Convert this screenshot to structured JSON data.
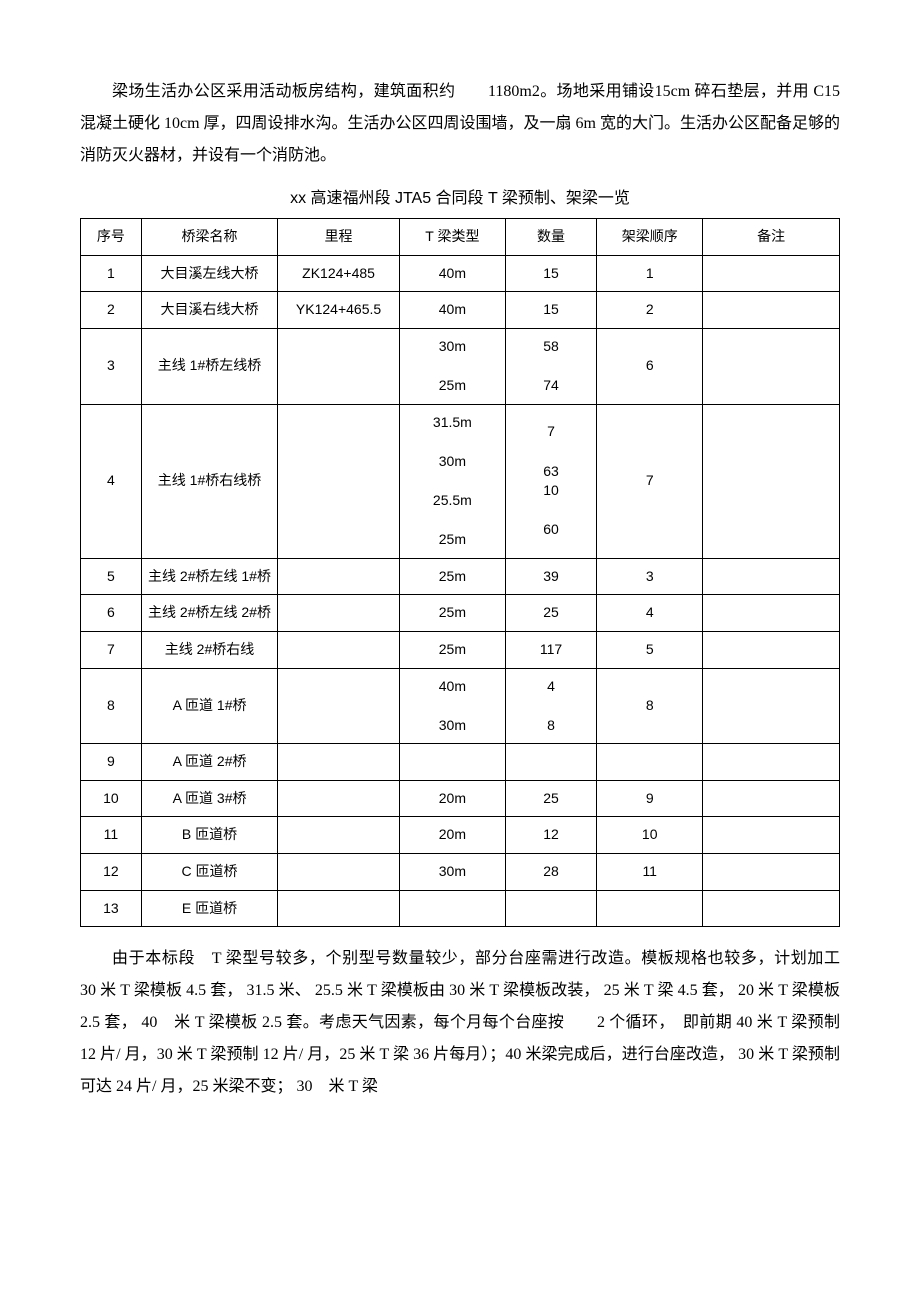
{
  "para1": "梁场生活办公区采用活动板房结构，建筑面积约　　1180m2。场地采用铺设15cm 碎石垫层，并用 C15 混凝土硬化 10cm 厚，四周设排水沟。生活办公区四周设围墙，及一扇 6m 宽的大门。生活办公区配备足够的消防灭火器材，并设有一个消防池。",
  "caption": "xx 高速福州段 JTA5 合同段 T 梁预制、架梁一览",
  "table": {
    "headers": [
      "序号",
      "桥梁名称",
      "里程",
      "T 梁类型",
      "数量",
      "架梁顺序",
      "备注"
    ],
    "rows": [
      {
        "seq": "1",
        "name": "大目溪左线大桥",
        "mileage": "ZK124+485",
        "type": "40m",
        "qty": "15",
        "order": "1",
        "note": ""
      },
      {
        "seq": "2",
        "name": "大目溪右线大桥",
        "mileage": "YK124+465.5",
        "type": "40m",
        "qty": "15",
        "order": "2",
        "note": ""
      },
      {
        "seq": "3",
        "name": "主线 1#桥左线桥",
        "mileage": "",
        "type": "30m\n\n25m",
        "qty": "58\n\n74",
        "order": "6",
        "note": ""
      },
      {
        "seq": "4",
        "name": "主线 1#桥右线桥",
        "mileage": "",
        "type": "31.5m\n\n30m\n\n25.5m\n\n25m",
        "qty": "7\n\n63\n10\n\n60",
        "order": "7",
        "note": ""
      },
      {
        "seq": "5",
        "name": "主线 2#桥左线 1#桥",
        "mileage": "",
        "type": "25m",
        "qty": "39",
        "order": "3",
        "note": ""
      },
      {
        "seq": "6",
        "name": "主线 2#桥左线 2#桥",
        "mileage": "",
        "type": "25m",
        "qty": "25",
        "order": "4",
        "note": ""
      },
      {
        "seq": "7",
        "name": "主线 2#桥右线",
        "mileage": "",
        "type": "25m",
        "qty": "117",
        "order": "5",
        "note": ""
      },
      {
        "seq": "8",
        "name": "A 匝道 1#桥",
        "mileage": "",
        "type": "40m\n\n30m",
        "qty": "4\n\n8",
        "order": "8",
        "note": ""
      },
      {
        "seq": "9",
        "name": "A 匝道 2#桥",
        "mileage": "",
        "type": "",
        "qty": "",
        "order": "",
        "note": ""
      },
      {
        "seq": "10",
        "name": "A 匝道 3#桥",
        "mileage": "",
        "type": "20m",
        "qty": "25",
        "order": "9",
        "note": ""
      },
      {
        "seq": "11",
        "name": "B 匝道桥",
        "mileage": "",
        "type": "20m",
        "qty": "12",
        "order": "10",
        "note": ""
      },
      {
        "seq": "12",
        "name": "C 匝道桥",
        "mileage": "",
        "type": "30m",
        "qty": "28",
        "order": "11",
        "note": ""
      },
      {
        "seq": "13",
        "name": "E 匝道桥",
        "mileage": "",
        "type": "",
        "qty": "",
        "order": "",
        "note": ""
      }
    ]
  },
  "para2": "由于本标段　T 梁型号较多，个别型号数量较少，部分台座需进行改造。模板规格也较多，计划加工　30 米 T 梁模板 4.5 套， 31.5 米、 25.5 米 T 梁模板由 30 米 T 梁模板改装， 25 米 T 梁 4.5 套， 20 米 T 梁模板 2.5 套， 40　米 T 梁模板 2.5 套。考虑天气因素，每个月每个台座按　　2 个循环，　即前期 40 米 T 梁预制 12 片/ 月，30 米 T 梁预制 12 片/ 月，25 米 T 梁 36 片每月）；40 米梁完成后，进行台座改造， 30 米 T 梁预制可达 24 片/ 月，25 米梁不变； 30　米 T 梁"
}
